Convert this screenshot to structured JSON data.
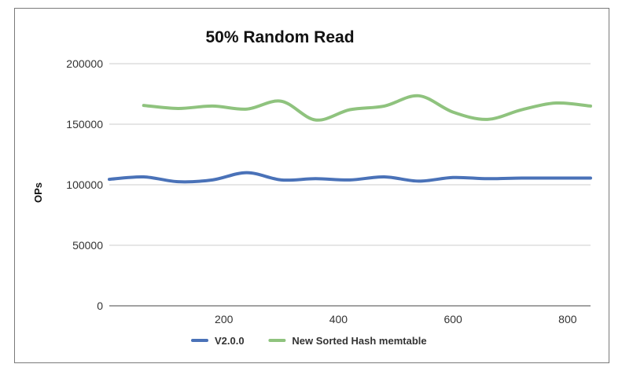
{
  "chart_data": {
    "type": "line",
    "title": "50% Random Read",
    "xlabel": "",
    "ylabel": "OPs",
    "xlim": [
      0,
      840
    ],
    "ylim": [
      0,
      200000
    ],
    "x_ticks": [
      200,
      400,
      600,
      800
    ],
    "y_ticks": [
      0,
      50000,
      100000,
      150000,
      200000
    ],
    "grid": "horizontal",
    "legend_position": "bottom",
    "series": [
      {
        "name": "V2.0.0",
        "color": "#4a72b8",
        "x": [
          0,
          60,
          120,
          180,
          240,
          300,
          360,
          420,
          480,
          540,
          600,
          660,
          720,
          780,
          840
        ],
        "y": [
          104500,
          106500,
          102500,
          104000,
          110000,
          104000,
          105000,
          104000,
          106500,
          103000,
          106000,
          105000,
          105500,
          105500,
          105500
        ]
      },
      {
        "name": "New Sorted Hash memtable",
        "color": "#8fc37e",
        "x": [
          60,
          120,
          180,
          240,
          300,
          360,
          420,
          480,
          540,
          600,
          660,
          720,
          780,
          840
        ],
        "y": [
          165500,
          163000,
          165000,
          162500,
          169000,
          153500,
          162000,
          165000,
          173500,
          160000,
          154000,
          162000,
          167500,
          165000
        ]
      }
    ]
  }
}
